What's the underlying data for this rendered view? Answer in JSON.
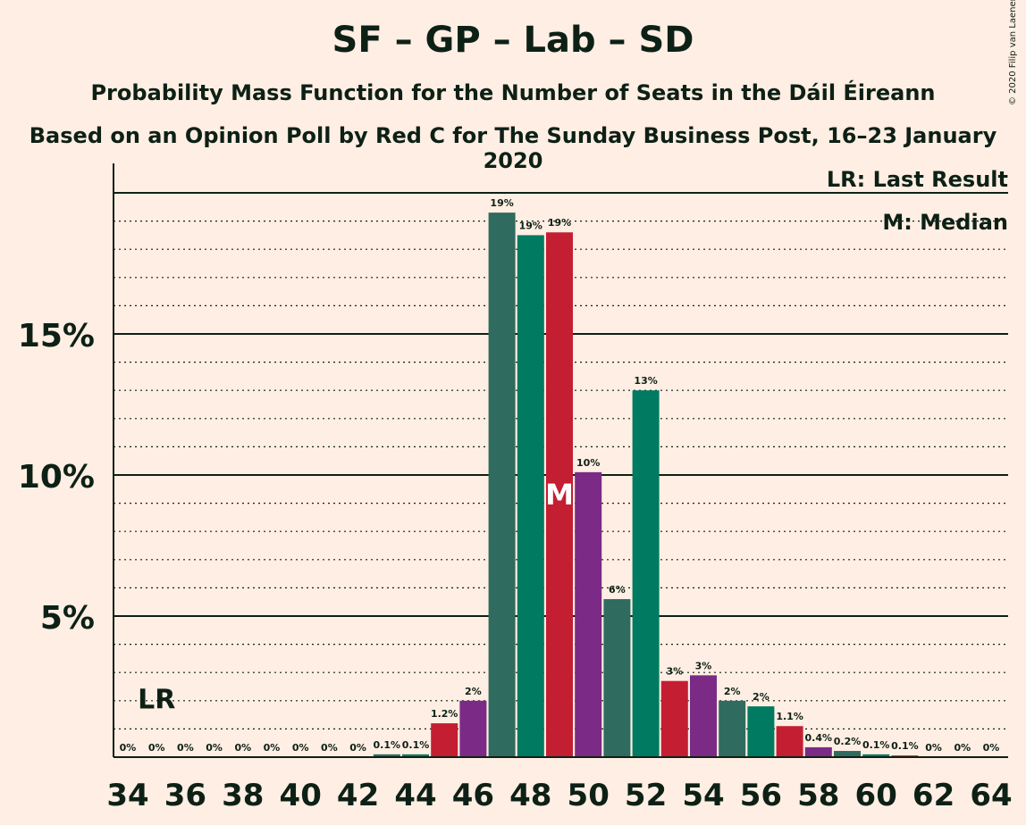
{
  "header": {
    "title": "SF – GP – Lab – SD",
    "subtitle": "Probability Mass Function for the Number of Seats in the Dáil Éireann",
    "source": "Based on an Opinion Poll by Red C for The Sunday Business Post, 16–23 January 2020",
    "copyright": "© 2020 Filip van Laenen"
  },
  "legend": {
    "last_result": "LR: Last Result",
    "median": "M: Median"
  },
  "colors": {
    "background": "#FFEEE3",
    "palette": [
      "#007A60",
      "#C41E32",
      "#7B2A86",
      "#2F6B5E"
    ]
  },
  "chart_data": {
    "type": "bar",
    "x": [
      34,
      35,
      36,
      37,
      38,
      39,
      40,
      41,
      42,
      43,
      44,
      45,
      46,
      47,
      48,
      49,
      50,
      51,
      52,
      53,
      54,
      55,
      56,
      57,
      58,
      59,
      60,
      61,
      62,
      63,
      64
    ],
    "values": [
      0,
      0,
      0,
      0,
      0,
      0,
      0,
      0,
      0,
      0.1,
      0.1,
      1.2,
      2,
      19.3,
      18.5,
      18.6,
      10.1,
      5.6,
      13.0,
      2.7,
      2.9,
      2.0,
      1.8,
      1.1,
      0.35,
      0.22,
      0.1,
      0.06,
      0,
      0,
      0
    ],
    "labels": [
      "0%",
      "0%",
      "0%",
      "0%",
      "0%",
      "0%",
      "0%",
      "0%",
      "0%",
      "0.1%",
      "0.1%",
      "1.2%",
      "2%",
      "19%",
      "19%",
      "19%",
      "10%",
      "6%",
      "13%",
      "3%",
      "3%",
      "2%",
      "2%",
      "1.1%",
      "0.4%",
      "0.2%",
      "0.1%",
      "0.1%",
      "0%",
      "0%",
      "0%"
    ],
    "x_tick_labels": [
      "34",
      "36",
      "38",
      "40",
      "42",
      "44",
      "46",
      "48",
      "50",
      "52",
      "54",
      "56",
      "58",
      "60",
      "62",
      "64"
    ],
    "y_tick_labels": [
      "5%",
      "10%",
      "15%"
    ],
    "ylim": [
      0,
      21
    ],
    "last_result": {
      "x": 35,
      "label": "LR"
    },
    "median": {
      "x": 49,
      "label": "M"
    },
    "grid": true
  }
}
